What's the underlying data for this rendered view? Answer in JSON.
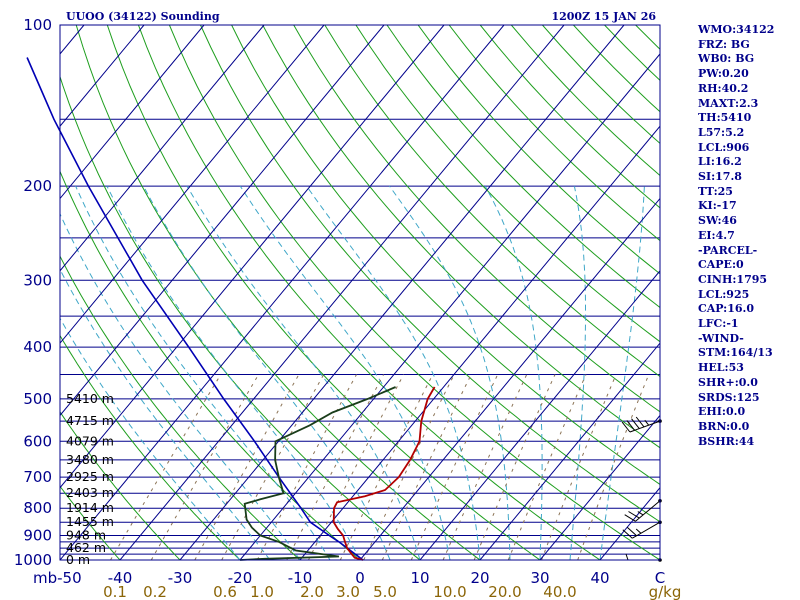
{
  "header": {
    "left": "UUOO (34122) Sounding",
    "right": "1200Z 15 JAN 26"
  },
  "indices": [
    "WMO:34122",
    "FRZ: BG",
    "WB0: BG",
    "PW:0.20",
    "RH:40.2",
    "MAXT:2.3",
    "TH:5410",
    "L57:5.2",
    "LCL:906",
    "LI:16.2",
    "SI:17.8",
    "TT:25",
    "KI:-17",
    "SW:46",
    "EI:4.7",
    "-PARCEL-",
    "CAPE:0",
    "CINH:1795",
    "LCL:925",
    "CAP:16.0",
    "LFC:-1",
    "-WIND-",
    "STM:164/13",
    "HEL:53",
    "SHR+:0.0",
    "SRDS:125",
    "EHI:0.0",
    "BRN:0.0",
    "BSHR:44"
  ],
  "colors": {
    "isobar": "#00008b",
    "dry_adiabat": "#1e9e1e",
    "moist_adiabat": "#3fa7c8",
    "mixing_ratio": "#8b7355",
    "temperature": "#b30000",
    "dewpoint": "#1a3d1a",
    "parcel": "#0000b4",
    "text": "#00008b",
    "mixing_label": "#8b6508"
  },
  "chart_data": {
    "type": "skew-t",
    "title": "UUOO (34122) Sounding",
    "p_range": [
      1000,
      100
    ],
    "t_range_at_1000": [
      -50,
      50
    ],
    "pressure_tick_labels": [
      "100",
      "200",
      "300",
      "400",
      "500",
      "600",
      "700",
      "800",
      "900",
      "1000"
    ],
    "isobars_drawn": [
      150,
      200,
      250,
      300,
      350,
      400,
      450,
      500,
      550,
      600,
      650,
      700,
      750,
      800,
      850,
      900,
      925,
      950,
      975,
      1000
    ],
    "temperature_tick_labels": [
      "mb-50",
      "-40",
      "-30",
      "-20",
      "-10",
      "0",
      "10",
      "20",
      "30",
      "40",
      "C"
    ],
    "mixing_ratio_labels": [
      "0.1",
      "0.2",
      "0.6",
      "1.0",
      "2.0",
      "3.0",
      "5.0",
      "10.0",
      "20.0",
      "40.0",
      "g/kg"
    ],
    "height_labels": [
      {
        "p": 500,
        "text": "5410 m"
      },
      {
        "p": 550,
        "text": "4715 m"
      },
      {
        "p": 600,
        "text": "4079 m"
      },
      {
        "p": 650,
        "text": "3480 m"
      },
      {
        "p": 700,
        "text": "2925 m"
      },
      {
        "p": 750,
        "text": "2403 m"
      },
      {
        "p": 800,
        "text": "1914 m"
      },
      {
        "p": 850,
        "text": "1455 m"
      },
      {
        "p": 900,
        "text": "948 m"
      },
      {
        "p": 950,
        "text": "462 m"
      },
      {
        "p": 1000,
        "text": "0 m"
      }
    ],
    "temperature_profile": [
      {
        "p": 1000,
        "t": 0.5
      },
      {
        "p": 990,
        "t": -1.2
      },
      {
        "p": 975,
        "t": -2.2
      },
      {
        "p": 950,
        "t": -3.8
      },
      {
        "p": 925,
        "t": -5.0
      },
      {
        "p": 900,
        "t": -6.2
      },
      {
        "p": 875,
        "t": -8.0
      },
      {
        "p": 850,
        "t": -9.6
      },
      {
        "p": 800,
        "t": -11.5
      },
      {
        "p": 780,
        "t": -11.8
      },
      {
        "p": 760,
        "t": -8.0
      },
      {
        "p": 740,
        "t": -5.5
      },
      {
        "p": 700,
        "t": -5.0
      },
      {
        "p": 650,
        "t": -5.5
      },
      {
        "p": 600,
        "t": -6.5
      },
      {
        "p": 550,
        "t": -9.0
      },
      {
        "p": 500,
        "t": -11.0
      },
      {
        "p": 475,
        "t": -11.5
      }
    ],
    "dewpoint_profile": [
      {
        "p": 1000,
        "td": -20.0
      },
      {
        "p": 995,
        "td": -16.0
      },
      {
        "p": 985,
        "td": -4.0
      },
      {
        "p": 960,
        "td": -12.0
      },
      {
        "p": 925,
        "td": -16.0
      },
      {
        "p": 900,
        "td": -20.0
      },
      {
        "p": 870,
        "td": -22.5
      },
      {
        "p": 840,
        "td": -24.5
      },
      {
        "p": 785,
        "td": -27.0
      },
      {
        "p": 770,
        "td": -25.0
      },
      {
        "p": 750,
        "td": -22.0
      },
      {
        "p": 700,
        "td": -25.0
      },
      {
        "p": 650,
        "td": -28.0
      },
      {
        "p": 600,
        "td": -30.5
      },
      {
        "p": 560,
        "td": -27.0
      },
      {
        "p": 530,
        "td": -25.0
      },
      {
        "p": 500,
        "td": -21.0
      },
      {
        "p": 475,
        "td": -18.0
      }
    ],
    "parcel_profile": [
      {
        "p": 1000,
        "t": 0.5
      },
      {
        "p": 925,
        "t": -6.0
      },
      {
        "p": 900,
        "t": -8.5
      },
      {
        "p": 850,
        "t": -13.5
      },
      {
        "p": 800,
        "t": -17.0
      },
      {
        "p": 700,
        "t": -25.0
      },
      {
        "p": 600,
        "t": -34.0
      },
      {
        "p": 500,
        "t": -45.0
      },
      {
        "p": 400,
        "t": -58.0
      },
      {
        "p": 300,
        "t": -75.0
      },
      {
        "p": 200,
        "t": -97.0
      },
      {
        "p": 150,
        "t": -112.0
      },
      {
        "p": 130,
        "t": -119.0
      },
      {
        "p": 115,
        "t": -125.0
      }
    ],
    "wind_profile": [
      {
        "p": 1000,
        "dir": 270,
        "kt": 5
      },
      {
        "p": 850,
        "dir": 240,
        "kt": 25
      },
      {
        "p": 775,
        "dir": 230,
        "kt": 25
      },
      {
        "p": 550,
        "dir": 250,
        "kt": 45
      }
    ]
  }
}
